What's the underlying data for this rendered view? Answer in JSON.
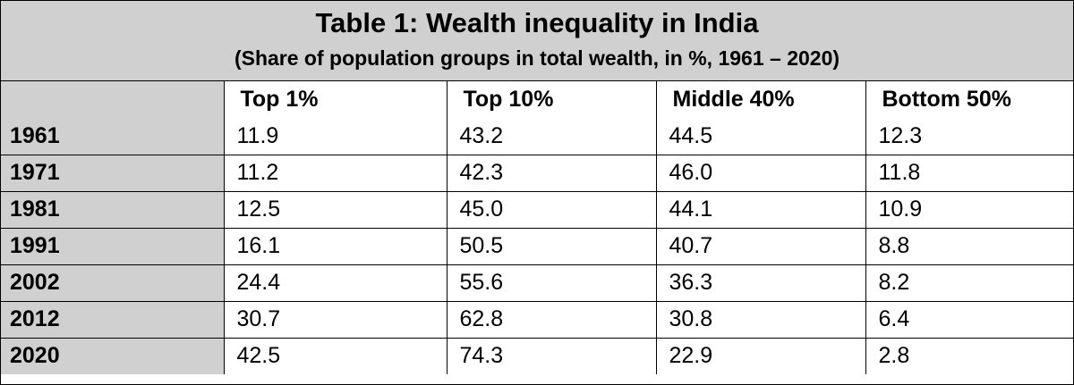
{
  "table": {
    "title": "Table 1: Wealth inequality in India",
    "subtitle": "(Share of population groups in total wealth, in %, 1961 – 2020)",
    "columns": [
      "Top 1%",
      "Top 10%",
      "Middle 40%",
      "Bottom 50%"
    ],
    "rows": [
      {
        "year": "1961",
        "values": [
          "11.9",
          "43.2",
          "44.5",
          "12.3"
        ]
      },
      {
        "year": "1971",
        "values": [
          "11.2",
          "42.3",
          "46.0",
          "11.8"
        ]
      },
      {
        "year": "1981",
        "values": [
          "12.5",
          "45.0",
          "44.1",
          "10.9"
        ]
      },
      {
        "year": "1991",
        "values": [
          "16.1",
          "50.5",
          "40.7",
          "8.8"
        ]
      },
      {
        "year": "2002",
        "values": [
          "24.4",
          "55.6",
          "36.3",
          "8.2"
        ]
      },
      {
        "year": "2012",
        "values": [
          "30.7",
          "62.8",
          "30.8",
          "6.4"
        ]
      },
      {
        "year": "2020",
        "values": [
          "42.5",
          "74.3",
          "22.9",
          "2.8"
        ]
      }
    ]
  },
  "colors": {
    "header_fill": "#d0d0d0",
    "border": "#000000"
  }
}
